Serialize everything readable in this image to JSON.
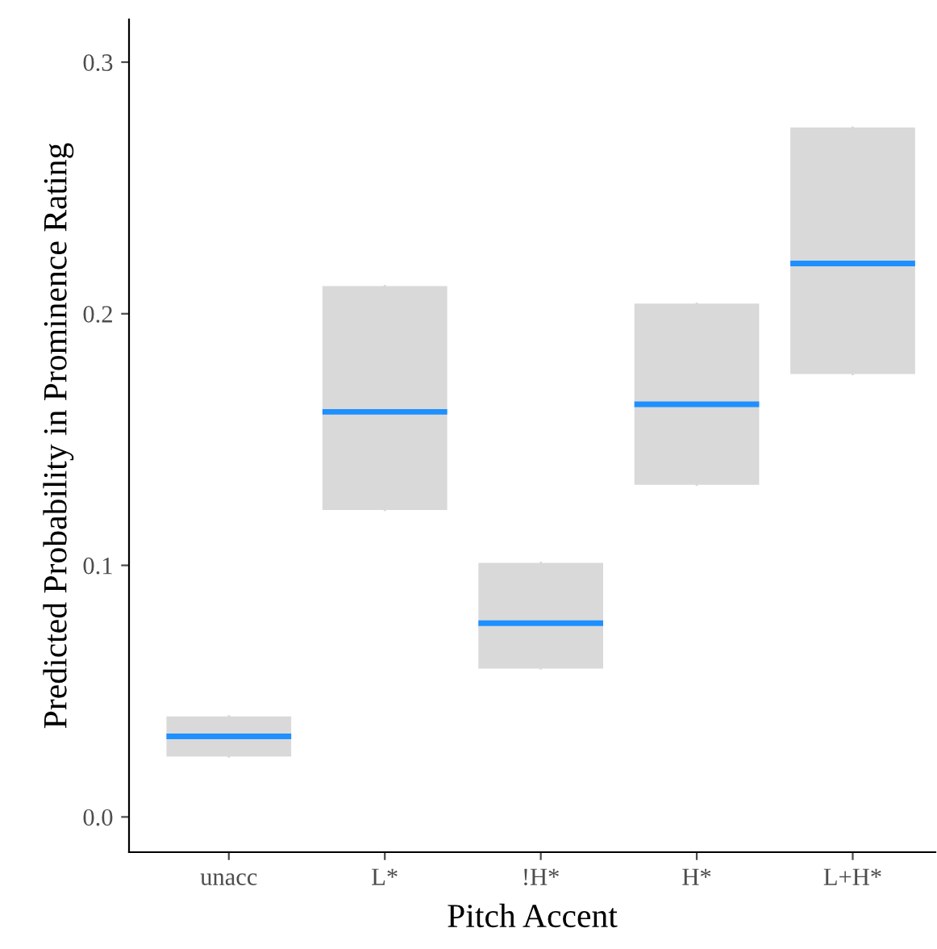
{
  "chart_data": {
    "type": "box",
    "xlabel": "Pitch Accent",
    "ylabel": "Predicted Probability in Prominence Rating",
    "categories": [
      "unacc",
      "L*",
      "!H*",
      "H*",
      "L+H*"
    ],
    "series": [
      {
        "color": "#d9d9d9",
        "boxes": [
          {
            "low": 0.024,
            "q1": 0.024,
            "median": 0.032,
            "q3": 0.04,
            "high": 0.04
          },
          {
            "low": 0.122,
            "q1": 0.122,
            "median": 0.161,
            "q3": 0.211,
            "high": 0.211
          },
          {
            "low": 0.059,
            "q1": 0.059,
            "median": 0.077,
            "q3": 0.101,
            "high": 0.101
          },
          {
            "low": 0.132,
            "q1": 0.132,
            "median": 0.164,
            "q3": 0.204,
            "high": 0.204
          },
          {
            "low": 0.176,
            "q1": 0.176,
            "median": 0.22,
            "q3": 0.274,
            "high": 0.274
          }
        ]
      }
    ],
    "ylim": [
      -0.014,
      0.317
    ],
    "yticks": [
      {
        "value": 0,
        "label": "0.0"
      },
      0.1,
      0.2,
      0.3
    ],
    "grid": false,
    "legend": false
  }
}
